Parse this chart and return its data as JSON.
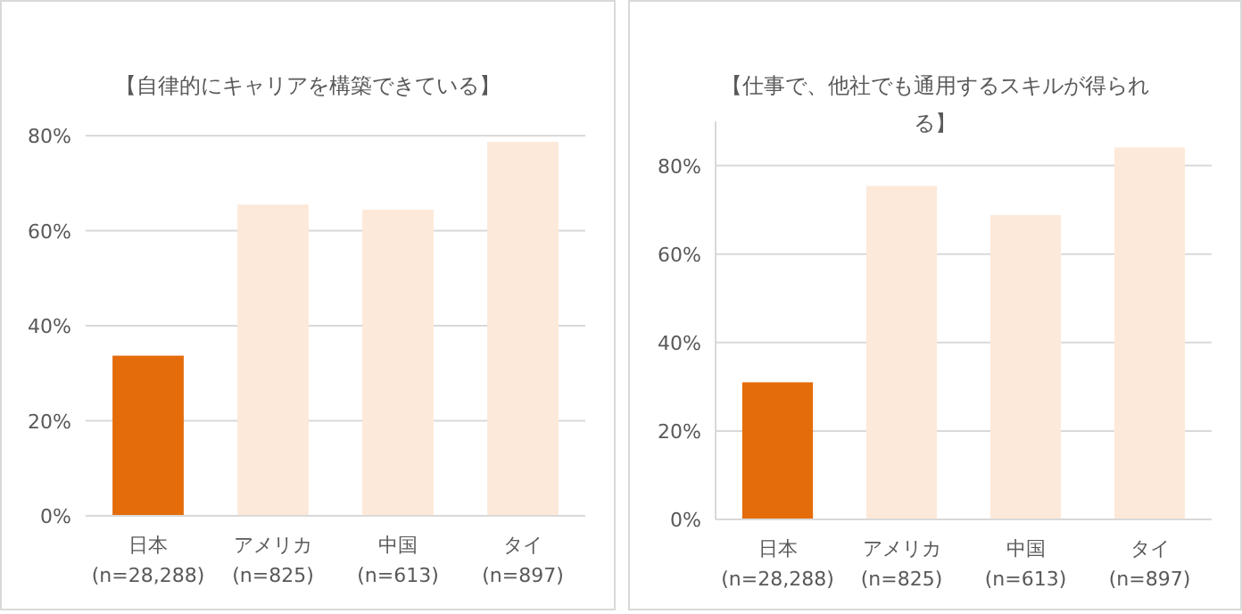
{
  "chart_data": [
    {
      "type": "bar",
      "title": "【自律的にキャリアを構築できている】",
      "categories": [
        "日本 (n=28,288)",
        "アメリカ (n=825)",
        "中国 (n=613)",
        "タイ (n=897)"
      ],
      "values": [
        33.7,
        65.5,
        64.4,
        78.7
      ],
      "colors": [
        "#e46c0a",
        "#fde9d9",
        "#fde9d9",
        "#fde9d9"
      ],
      "ylim": [
        0,
        80
      ],
      "yticks": [
        {
          "value": 0,
          "label": "0%"
        },
        {
          "value": 20,
          "label": "20%"
        },
        {
          "value": 40,
          "label": "40%"
        },
        {
          "value": 60,
          "label": "60%"
        },
        {
          "value": 80,
          "label": "80%"
        }
      ],
      "grid": "y"
    },
    {
      "type": "bar",
      "title": "【仕事で、他社でも通用するスキルが得られる】",
      "categories": [
        "日本 (n=28,288)",
        "アメリカ (n=825)",
        "中国 (n=613)",
        "タイ (n=897)"
      ],
      "values": [
        31.0,
        75.4,
        68.8,
        84.1
      ],
      "colors": [
        "#e46c0a",
        "#fde9d9",
        "#fde9d9",
        "#fde9d9"
      ],
      "ylim": [
        0,
        90
      ],
      "yticks": [
        {
          "value": 0,
          "label": "0%"
        },
        {
          "value": 20,
          "label": "20%"
        },
        {
          "value": 40,
          "label": "40%"
        },
        {
          "value": 60,
          "label": "60%"
        },
        {
          "value": 80,
          "label": "80%"
        }
      ],
      "grid": "y"
    }
  ]
}
